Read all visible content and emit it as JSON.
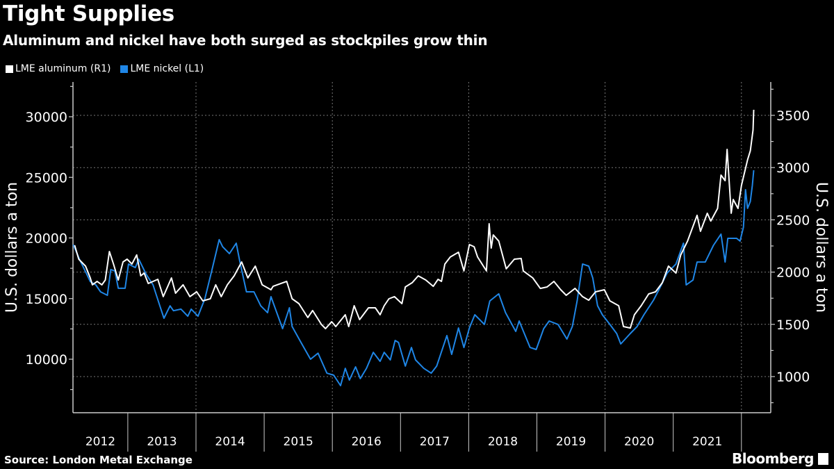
{
  "header": {
    "title": "Tight Supplies",
    "subtitle": "Aluminum and nickel have both surged as stockpiles grow thin"
  },
  "footer": {
    "source": "Source: London Metal Exchange",
    "logo": "Bloomberg"
  },
  "chart_data": {
    "type": "line",
    "title": "Tight Supplies",
    "subtitle": "Aluminum and nickel have both surged as stockpiles grow thin",
    "legend_position": "top-left",
    "grid": true,
    "x_tick_labels": [
      "2012",
      "2013",
      "2014",
      "2015",
      "2016",
      "2017",
      "2018",
      "2019",
      "2020",
      "2021"
    ],
    "y_left": {
      "label": "U.S. dollars a ton",
      "ticks": [
        10000,
        15000,
        20000,
        25000,
        30000
      ],
      "range": [
        7000,
        33500
      ]
    },
    "y_right": {
      "label": "U.S. dollars a ton",
      "ticks": [
        1000,
        1500,
        2000,
        2500,
        3000,
        3500
      ],
      "range": [
        700,
        3800
      ]
    },
    "series": [
      {
        "name": "LME aluminum (R1)",
        "axis": "right",
        "color": "#ffffff",
        "points": [
          [
            2012.22,
            2257
          ],
          [
            2012.28,
            2124
          ],
          [
            2012.38,
            2057
          ],
          [
            2012.45,
            1944
          ],
          [
            2012.48,
            1878
          ],
          [
            2012.55,
            1911
          ],
          [
            2012.62,
            1878
          ],
          [
            2012.67,
            1924
          ],
          [
            2012.73,
            2197
          ],
          [
            2012.79,
            2077
          ],
          [
            2012.86,
            1924
          ],
          [
            2012.93,
            2097
          ],
          [
            2012.99,
            2124
          ],
          [
            2013.06,
            2077
          ],
          [
            2013.13,
            2164
          ],
          [
            2013.19,
            1964
          ],
          [
            2013.24,
            1991
          ],
          [
            2013.3,
            1891
          ],
          [
            2013.44,
            1931
          ],
          [
            2013.52,
            1765
          ],
          [
            2013.64,
            1944
          ],
          [
            2013.7,
            1798
          ],
          [
            2013.81,
            1878
          ],
          [
            2013.91,
            1765
          ],
          [
            2014.01,
            1811
          ],
          [
            2014.1,
            1725
          ],
          [
            2014.21,
            1745
          ],
          [
            2014.29,
            1878
          ],
          [
            2014.37,
            1765
          ],
          [
            2014.46,
            1878
          ],
          [
            2014.56,
            1964
          ],
          [
            2014.67,
            2097
          ],
          [
            2014.76,
            1944
          ],
          [
            2014.87,
            2057
          ],
          [
            2014.97,
            1878
          ],
          [
            2015.1,
            1831
          ],
          [
            2015.13,
            1864
          ],
          [
            2015.33,
            1911
          ],
          [
            2015.41,
            1745
          ],
          [
            2015.51,
            1698
          ],
          [
            2015.64,
            1565
          ],
          [
            2015.71,
            1632
          ],
          [
            2015.84,
            1499
          ],
          [
            2015.9,
            1459
          ],
          [
            2015.99,
            1525
          ],
          [
            2016.05,
            1479
          ],
          [
            2016.19,
            1592
          ],
          [
            2016.24,
            1479
          ],
          [
            2016.32,
            1678
          ],
          [
            2016.4,
            1545
          ],
          [
            2016.53,
            1658
          ],
          [
            2016.63,
            1658
          ],
          [
            2016.7,
            1592
          ],
          [
            2016.76,
            1678
          ],
          [
            2016.83,
            1745
          ],
          [
            2016.91,
            1765
          ],
          [
            2017.02,
            1698
          ],
          [
            2017.07,
            1858
          ],
          [
            2017.17,
            1898
          ],
          [
            2017.26,
            1964
          ],
          [
            2017.37,
            1924
          ],
          [
            2017.48,
            1864
          ],
          [
            2017.55,
            1931
          ],
          [
            2017.6,
            1911
          ],
          [
            2017.65,
            2077
          ],
          [
            2017.73,
            2144
          ],
          [
            2017.85,
            2190
          ],
          [
            2017.93,
            2011
          ],
          [
            2018.01,
            2263
          ],
          [
            2018.08,
            2243
          ],
          [
            2018.13,
            2144
          ],
          [
            2018.26,
            2011
          ],
          [
            2018.3,
            2463
          ],
          [
            2018.33,
            2230
          ],
          [
            2018.36,
            2356
          ],
          [
            2018.44,
            2297
          ],
          [
            2018.55,
            2031
          ],
          [
            2018.67,
            2124
          ],
          [
            2018.77,
            2130
          ],
          [
            2018.8,
            2011
          ],
          [
            2018.94,
            1944
          ],
          [
            2019.05,
            1844
          ],
          [
            2019.15,
            1858
          ],
          [
            2019.25,
            1911
          ],
          [
            2019.35,
            1831
          ],
          [
            2019.43,
            1778
          ],
          [
            2019.56,
            1844
          ],
          [
            2019.67,
            1765
          ],
          [
            2019.76,
            1731
          ],
          [
            2019.86,
            1811
          ],
          [
            2019.99,
            1831
          ],
          [
            2020.07,
            1725
          ],
          [
            2020.2,
            1678
          ],
          [
            2020.27,
            1479
          ],
          [
            2020.37,
            1465
          ],
          [
            2020.43,
            1592
          ],
          [
            2020.53,
            1678
          ],
          [
            2020.64,
            1791
          ],
          [
            2020.74,
            1811
          ],
          [
            2020.84,
            1898
          ],
          [
            2020.93,
            2057
          ],
          [
            2021.04,
            1991
          ],
          [
            2021.11,
            2164
          ],
          [
            2021.21,
            2297
          ],
          [
            2021.35,
            2543
          ],
          [
            2021.4,
            2390
          ],
          [
            2021.5,
            2563
          ],
          [
            2021.55,
            2489
          ],
          [
            2021.65,
            2609
          ],
          [
            2021.7,
            2928
          ],
          [
            2021.76,
            2875
          ],
          [
            2021.79,
            3174
          ],
          [
            2021.85,
            2563
          ],
          [
            2021.88,
            2695
          ],
          [
            2021.95,
            2609
          ],
          [
            2022.0,
            2828
          ],
          [
            2022.09,
            3074
          ],
          [
            2022.13,
            3160
          ],
          [
            2022.17,
            3360
          ],
          [
            2022.18,
            3553
          ]
        ]
      },
      {
        "name": "LME nickel (L1)",
        "axis": "left",
        "color": "#1f86e6",
        "points": [
          [
            2012.2,
            19450
          ],
          [
            2012.3,
            18140
          ],
          [
            2012.4,
            17000
          ],
          [
            2012.45,
            16400
          ],
          [
            2012.53,
            16130
          ],
          [
            2012.6,
            15560
          ],
          [
            2012.7,
            15270
          ],
          [
            2012.75,
            17400
          ],
          [
            2012.81,
            17280
          ],
          [
            2012.86,
            15850
          ],
          [
            2012.96,
            15850
          ],
          [
            2013.01,
            17850
          ],
          [
            2013.11,
            17560
          ],
          [
            2013.16,
            18250
          ],
          [
            2013.27,
            17000
          ],
          [
            2013.37,
            16130
          ],
          [
            2013.47,
            14400
          ],
          [
            2013.53,
            13380
          ],
          [
            2013.62,
            14400
          ],
          [
            2013.67,
            14000
          ],
          [
            2013.78,
            14130
          ],
          [
            2013.88,
            13550
          ],
          [
            2013.93,
            14130
          ],
          [
            2014.03,
            13550
          ],
          [
            2014.13,
            14990
          ],
          [
            2014.23,
            17280
          ],
          [
            2014.34,
            19860
          ],
          [
            2014.39,
            19280
          ],
          [
            2014.49,
            18710
          ],
          [
            2014.59,
            19570
          ],
          [
            2014.64,
            18140
          ],
          [
            2014.74,
            15560
          ],
          [
            2014.85,
            15560
          ],
          [
            2014.95,
            14400
          ],
          [
            2015.05,
            13840
          ],
          [
            2015.1,
            15160
          ],
          [
            2015.27,
            12520
          ],
          [
            2015.37,
            14240
          ],
          [
            2015.41,
            12700
          ],
          [
            2015.54,
            11380
          ],
          [
            2015.68,
            10000
          ],
          [
            2015.79,
            10500
          ],
          [
            2015.92,
            8850
          ],
          [
            2016.02,
            8680
          ],
          [
            2016.12,
            7820
          ],
          [
            2016.19,
            9250
          ],
          [
            2016.25,
            8280
          ],
          [
            2016.34,
            9370
          ],
          [
            2016.41,
            8400
          ],
          [
            2016.5,
            9250
          ],
          [
            2016.6,
            10570
          ],
          [
            2016.7,
            9830
          ],
          [
            2016.76,
            10570
          ],
          [
            2016.85,
            9940
          ],
          [
            2016.92,
            11550
          ],
          [
            2016.97,
            11380
          ],
          [
            2017.07,
            9430
          ],
          [
            2017.16,
            10970
          ],
          [
            2017.22,
            9940
          ],
          [
            2017.34,
            9250
          ],
          [
            2017.45,
            8850
          ],
          [
            2017.53,
            9430
          ],
          [
            2017.68,
            11950
          ],
          [
            2017.75,
            10400
          ],
          [
            2017.85,
            12580
          ],
          [
            2017.93,
            10970
          ],
          [
            2018.01,
            12580
          ],
          [
            2018.09,
            13670
          ],
          [
            2018.23,
            12870
          ],
          [
            2018.31,
            14810
          ],
          [
            2018.44,
            15390
          ],
          [
            2018.54,
            13840
          ],
          [
            2018.69,
            12290
          ],
          [
            2018.74,
            13150
          ],
          [
            2018.9,
            10970
          ],
          [
            2018.99,
            10800
          ],
          [
            2019.1,
            12520
          ],
          [
            2019.18,
            13150
          ],
          [
            2019.31,
            12870
          ],
          [
            2019.44,
            11660
          ],
          [
            2019.52,
            12700
          ],
          [
            2019.59,
            14810
          ],
          [
            2019.67,
            17850
          ],
          [
            2019.76,
            17680
          ],
          [
            2019.82,
            16700
          ],
          [
            2019.89,
            14410
          ],
          [
            2019.96,
            13670
          ],
          [
            2020.07,
            12870
          ],
          [
            2020.17,
            12120
          ],
          [
            2020.23,
            11260
          ],
          [
            2020.37,
            12120
          ],
          [
            2020.47,
            12700
          ],
          [
            2020.57,
            13670
          ],
          [
            2020.71,
            14870
          ],
          [
            2020.81,
            15960
          ],
          [
            2020.91,
            17110
          ],
          [
            2021.04,
            17850
          ],
          [
            2021.15,
            19570
          ],
          [
            2021.19,
            16130
          ],
          [
            2021.29,
            16530
          ],
          [
            2021.35,
            18020
          ],
          [
            2021.47,
            18020
          ],
          [
            2021.59,
            19400
          ],
          [
            2021.7,
            20320
          ],
          [
            2021.76,
            18020
          ],
          [
            2021.8,
            19970
          ],
          [
            2021.93,
            19970
          ],
          [
            2021.98,
            19740
          ],
          [
            2022.03,
            20890
          ],
          [
            2022.06,
            23980
          ],
          [
            2022.09,
            22440
          ],
          [
            2022.13,
            23010
          ],
          [
            2022.16,
            24330
          ],
          [
            2022.18,
            25590
          ]
        ]
      }
    ]
  }
}
